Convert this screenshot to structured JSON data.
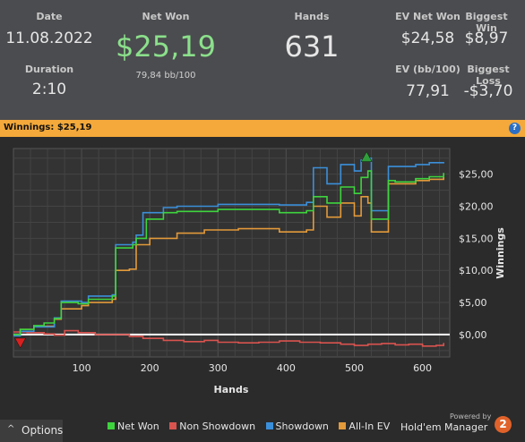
{
  "stats": {
    "date": {
      "label": "Date",
      "value": "11.08.2022"
    },
    "duration": {
      "label": "Duration",
      "value": "2:10"
    },
    "net_won": {
      "label": "Net Won",
      "value": "$25,19",
      "sub": "79,84 bb/100"
    },
    "hands": {
      "label": "Hands",
      "value": "631"
    },
    "ev_net_won": {
      "label": "EV Net Won",
      "value": "$24,58"
    },
    "biggest_win": {
      "label": "Biggest Win",
      "value": "$8,97"
    },
    "ev_bb100": {
      "label": "EV (bb/100)",
      "value": "77,91"
    },
    "biggest_loss": {
      "label": "Biggest Loss",
      "value": "-$3,70"
    }
  },
  "winnings_bar": {
    "text": "Winnings: $25,19",
    "help": "?"
  },
  "options": {
    "label": "Options",
    "arrow": "^"
  },
  "brand": {
    "powered": "Powered by",
    "name": "Hold'em Manager",
    "badge": "2"
  },
  "colors": {
    "net_won": "#3ed43e",
    "non_showdown": "#d9534f",
    "showdown": "#3b8fd9",
    "allin_ev": "#e39a3a",
    "zero": "#ffffff"
  },
  "chart_data": {
    "type": "line",
    "xlabel": "Hands",
    "ylabel": "Winnings",
    "xticks": [
      100,
      200,
      300,
      400,
      500,
      600
    ],
    "yticks": [
      "$25,00",
      "$20,00",
      "$15,00",
      "$10,00",
      "$5,00",
      "$0,00"
    ],
    "ytick_values": [
      25,
      20,
      15,
      10,
      5,
      0
    ],
    "xlim": [
      0,
      640
    ],
    "ylim": [
      -3.5,
      29
    ],
    "grid": true,
    "series": [
      {
        "name": "Net Won",
        "color": "#3ed43e",
        "points": [
          [
            0,
            0
          ],
          [
            10,
            0.8
          ],
          [
            30,
            1.4
          ],
          [
            45,
            1.8
          ],
          [
            60,
            2.5
          ],
          [
            70,
            5
          ],
          [
            95,
            4.8
          ],
          [
            110,
            5.5
          ],
          [
            145,
            6
          ],
          [
            150,
            13.5
          ],
          [
            175,
            14
          ],
          [
            180,
            15
          ],
          [
            195,
            18
          ],
          [
            220,
            19
          ],
          [
            240,
            19.2
          ],
          [
            300,
            19.5
          ],
          [
            390,
            19
          ],
          [
            430,
            19.3
          ],
          [
            440,
            21.5
          ],
          [
            460,
            20.5
          ],
          [
            480,
            23
          ],
          [
            500,
            22
          ],
          [
            510,
            24.5
          ],
          [
            520,
            25.5
          ],
          [
            525,
            18
          ],
          [
            550,
            24
          ],
          [
            560,
            23.8
          ],
          [
            590,
            24.3
          ],
          [
            610,
            24.6
          ],
          [
            631,
            25.19
          ]
        ]
      },
      {
        "name": "Non Showdown",
        "color": "#d9534f",
        "points": [
          [
            0,
            0.4
          ],
          [
            20,
            0.3
          ],
          [
            45,
            0.1
          ],
          [
            60,
            -0.1
          ],
          [
            75,
            0.6
          ],
          [
            95,
            0.3
          ],
          [
            120,
            0
          ],
          [
            150,
            0
          ],
          [
            170,
            -0.3
          ],
          [
            190,
            -0.6
          ],
          [
            220,
            -0.9
          ],
          [
            250,
            -1.1
          ],
          [
            280,
            -0.9
          ],
          [
            300,
            -1.2
          ],
          [
            330,
            -1.3
          ],
          [
            360,
            -1.2
          ],
          [
            390,
            -1.0
          ],
          [
            420,
            -1.2
          ],
          [
            450,
            -1.3
          ],
          [
            480,
            -1.5
          ],
          [
            500,
            -1.7
          ],
          [
            520,
            -1.5
          ],
          [
            540,
            -1.4
          ],
          [
            560,
            -1.6
          ],
          [
            580,
            -1.5
          ],
          [
            600,
            -1.8
          ],
          [
            620,
            -1.7
          ],
          [
            631,
            -1.3
          ]
        ]
      },
      {
        "name": "Showdown",
        "color": "#3b8fd9",
        "points": [
          [
            0,
            -0.2
          ],
          [
            10,
            0.5
          ],
          [
            30,
            1.2
          ],
          [
            60,
            2.6
          ],
          [
            70,
            5.2
          ],
          [
            100,
            5
          ],
          [
            110,
            6
          ],
          [
            145,
            6.2
          ],
          [
            150,
            14
          ],
          [
            175,
            14.4
          ],
          [
            180,
            15.5
          ],
          [
            190,
            19
          ],
          [
            220,
            19.8
          ],
          [
            240,
            20
          ],
          [
            300,
            20.3
          ],
          [
            390,
            20.2
          ],
          [
            430,
            20.6
          ],
          [
            440,
            26
          ],
          [
            460,
            23.5
          ],
          [
            480,
            26.5
          ],
          [
            500,
            25.5
          ],
          [
            510,
            27.2
          ],
          [
            520,
            27.5
          ],
          [
            525,
            19.3
          ],
          [
            550,
            26.2
          ],
          [
            590,
            26.5
          ],
          [
            610,
            26.8
          ],
          [
            631,
            26.9
          ]
        ]
      },
      {
        "name": "All-In EV",
        "color": "#e39a3a",
        "points": [
          [
            0,
            0
          ],
          [
            10,
            0.8
          ],
          [
            30,
            1.3
          ],
          [
            60,
            2.4
          ],
          [
            70,
            4
          ],
          [
            100,
            4.5
          ],
          [
            110,
            5
          ],
          [
            145,
            5.5
          ],
          [
            150,
            10
          ],
          [
            170,
            10.2
          ],
          [
            180,
            14
          ],
          [
            200,
            15
          ],
          [
            240,
            15.8
          ],
          [
            280,
            16.3
          ],
          [
            330,
            16.5
          ],
          [
            390,
            16
          ],
          [
            430,
            16.3
          ],
          [
            440,
            20
          ],
          [
            460,
            18.3
          ],
          [
            480,
            20.5
          ],
          [
            500,
            18.5
          ],
          [
            510,
            21.5
          ],
          [
            520,
            20.5
          ],
          [
            525,
            16
          ],
          [
            550,
            23.5
          ],
          [
            590,
            24
          ],
          [
            610,
            24.2
          ],
          [
            631,
            24.58
          ]
        ]
      }
    ],
    "markers": [
      {
        "type": "max",
        "x": 518,
        "y": 27.8,
        "color": "#2f9e3a"
      },
      {
        "type": "min",
        "x": 10,
        "y": -1.4,
        "color": "#d92020"
      }
    ]
  }
}
